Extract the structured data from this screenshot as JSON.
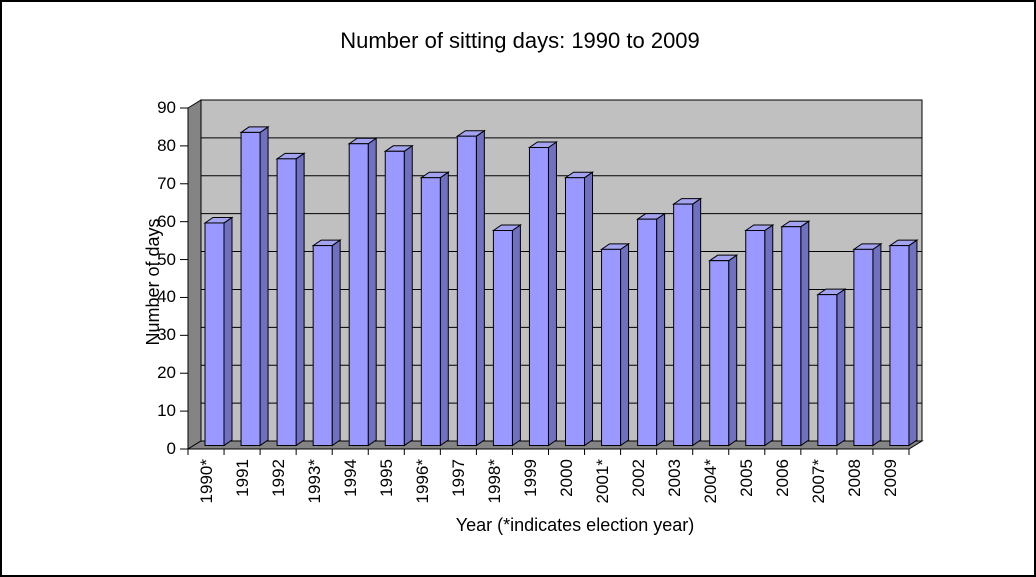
{
  "chart_data": {
    "type": "bar",
    "style": "3d-column-excel",
    "title": "Number of sitting days: 1990 to 2009",
    "xlabel": "Year (*indicates election year)",
    "ylabel": "Number of days",
    "ylim": [
      0,
      90
    ],
    "yticks": [
      0,
      10,
      20,
      30,
      40,
      50,
      60,
      70,
      80,
      90
    ],
    "grid": true,
    "legend": "none",
    "categories": [
      "1990*",
      "1991",
      "1992",
      "1993*",
      "1994",
      "1995",
      "1996*",
      "1997",
      "1998*",
      "1999",
      "2000",
      "2001*",
      "2002",
      "2003",
      "2004*",
      "2005",
      "2006",
      "2007*",
      "2008",
      "2009"
    ],
    "values": [
      59,
      83,
      76,
      53,
      80,
      78,
      71,
      82,
      57,
      79,
      71,
      52,
      60,
      64,
      49,
      57,
      58,
      40,
      52,
      53
    ],
    "colors": {
      "bar_front": "#9999FF",
      "bar_top": "#A3A3F0",
      "bar_side": "#7070C0",
      "back_wall": "#C0C0C0",
      "side_wall": "#848484",
      "floor": "#848484",
      "gridline": "#000000",
      "text": "#000000",
      "background": "#FFFFFF"
    }
  }
}
